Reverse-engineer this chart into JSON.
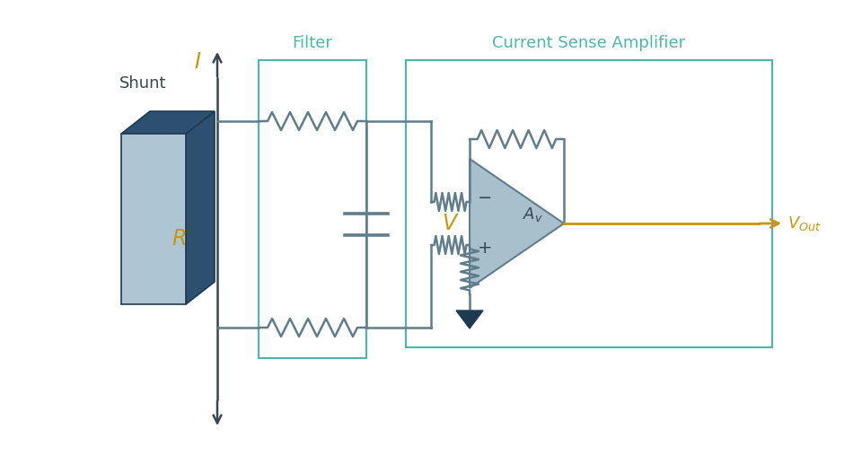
{
  "bg_color": "#ffffff",
  "line_color": "#607d8b",
  "line_width": 1.8,
  "arrow_color": "#37474f",
  "label_color_gold": "#c8960c",
  "label_color_teal": "#4db6ac",
  "label_color_dark": "#37474f",
  "shunt_face_color": "#aec6d4",
  "shunt_dark_color": "#1e3a52",
  "shunt_side_color": "#2d5070",
  "shunt_top_color": "#2d5070",
  "opamp_fill": "#a8c0cc",
  "opamp_edge": "#607d8b",
  "ground_color": "#1e3a52",
  "vout_color": "#c8960c",
  "filter_box_color": "#4db6ac",
  "csa_box_color": "#4db6ac",
  "title_filter": "Filter",
  "title_csa": "Current Sense Amplifier",
  "label_I": "I",
  "label_R": "R",
  "label_Shunt": "Shunt",
  "label_V": "V",
  "label_minus": "−",
  "label_plus": "+"
}
